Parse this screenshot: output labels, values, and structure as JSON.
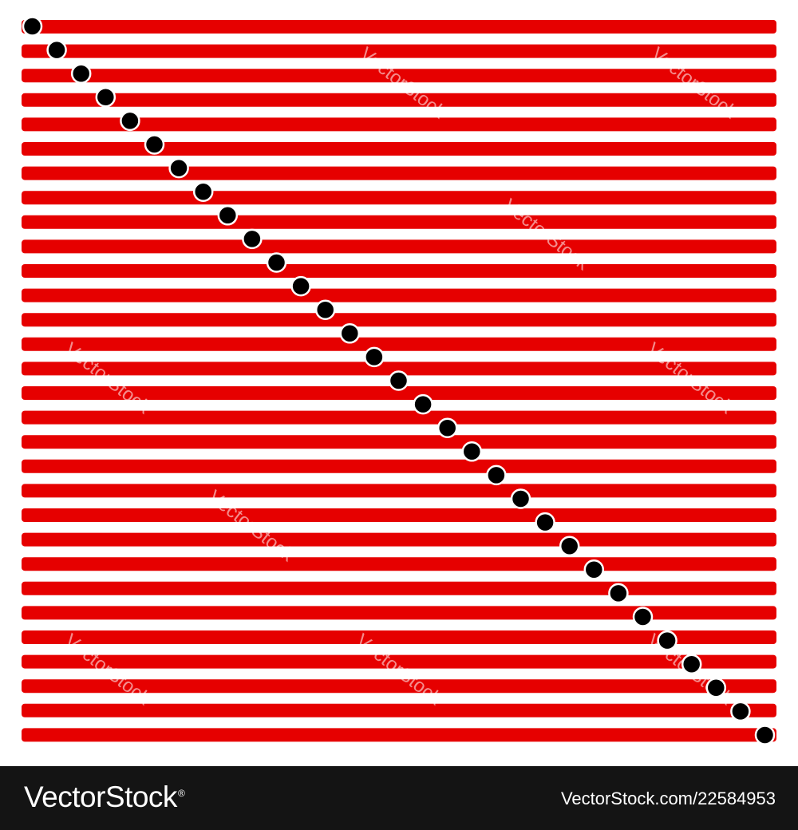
{
  "artwork": {
    "stripe_count": 30,
    "dot_count": 31,
    "stripe_color": "#e60000",
    "dot_color": "#000000",
    "dot_outline_color": "#ffffff",
    "background_color": "#ffffff"
  },
  "watermark": {
    "text": "VectorStock"
  },
  "footer": {
    "brand": "VectorStock",
    "brand_mark": "®",
    "image_id": "VectorStock.com/22584953",
    "background_color": "#141414"
  }
}
